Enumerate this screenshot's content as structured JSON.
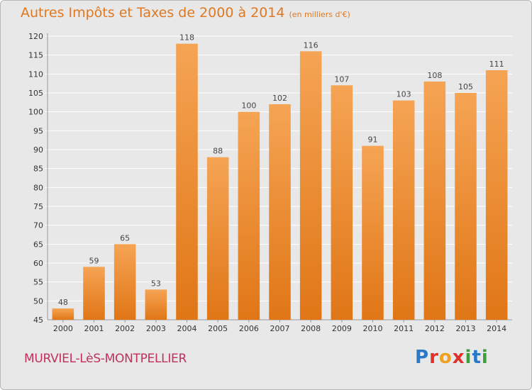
{
  "header": {
    "title": "Autres Impôts et Taxes de 2000 à 2014",
    "subtitle": "(en milliers d'€)"
  },
  "footer": {
    "town": "MURVIEL-LèS-MONTPELLIER",
    "logo_letters": [
      "P",
      "r",
      "o",
      "x",
      "i",
      "t",
      "i"
    ]
  },
  "colors": {
    "title": "#e07820",
    "town": "#c0305a",
    "bar_top": "#f5a454",
    "bar_bottom": "#e07616",
    "background": "#e8e8e8",
    "grid": "#ffffff",
    "logo": [
      "#2a78c8",
      "#e0302a",
      "#f0a020",
      "#e0302a",
      "#3aa03a",
      "#2a78c8",
      "#3aa03a"
    ]
  },
  "chart_data": {
    "type": "bar",
    "categories": [
      "2000",
      "2001",
      "2002",
      "2003",
      "2004",
      "2005",
      "2006",
      "2007",
      "2008",
      "2009",
      "2010",
      "2011",
      "2012",
      "2013",
      "2014"
    ],
    "values": [
      48,
      59,
      65,
      53,
      118,
      88,
      100,
      102,
      116,
      107,
      91,
      103,
      108,
      105,
      111
    ],
    "ylim": [
      45,
      120
    ],
    "yticks": [
      45,
      50,
      55,
      60,
      65,
      70,
      75,
      80,
      85,
      90,
      95,
      100,
      105,
      110,
      115,
      120
    ],
    "grid": true,
    "legend": "none"
  }
}
